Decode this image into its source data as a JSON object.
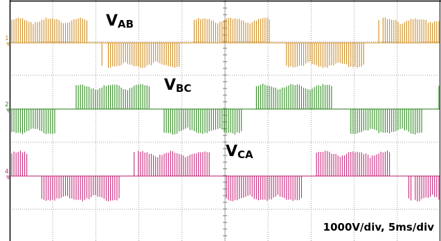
{
  "traces": [
    {
      "marker": "1",
      "label": {
        "main": "V",
        "sub": "AB"
      },
      "color": "#d08a1c"
    },
    {
      "marker": "2",
      "label": {
        "main": "V",
        "sub": "BC"
      },
      "color": "#2e8b1e"
    },
    {
      "marker": "4",
      "label": {
        "main": "V",
        "sub": "CA"
      },
      "color": "#c8277a"
    }
  ],
  "scale_note": "1000V/div, 5ms/div"
}
